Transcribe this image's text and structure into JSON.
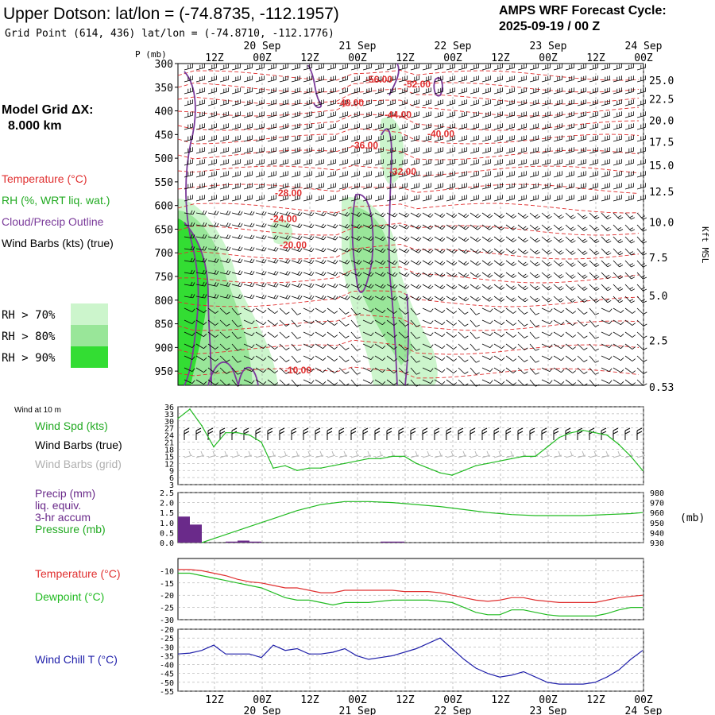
{
  "header": {
    "title": "Upper Dotson:  lat/lon = (-74.8735, -112.1957)",
    "subtitle": "Grid Point (614, 436) lat/lon = (-74.8710, -112.1776)",
    "cycle_line1": "AMPS WRF Forecast Cycle:",
    "cycle_line2": "2025-09-19 / 00  Z"
  },
  "left_panel": {
    "grid_label": "Model Grid ΔX:",
    "grid_value": "8.000 km",
    "legend": [
      {
        "text": "Temperature (°C)",
        "color": "#e03030"
      },
      {
        "text": "RH (%, WRT liq. wat.)",
        "color": "#22aa22"
      },
      {
        "text": "Cloud/Precip Outline",
        "color": "#7a3a9a"
      },
      {
        "text": "Wind Barbs (kts) (true)",
        "color": "#000000"
      }
    ],
    "rh_legend": [
      {
        "text": "RH > 70%",
        "color": "#ccf5cc"
      },
      {
        "text": "RH > 80%",
        "color": "#99e699"
      },
      {
        "text": "RH > 90%",
        "color": "#33dd33"
      }
    ]
  },
  "time_axis": {
    "top_row": [
      "12Z",
      "00Z",
      "12Z",
      "00Z",
      "12Z",
      "00Z",
      "12Z",
      "00Z",
      "12Z",
      "00Z"
    ],
    "date_labels": [
      {
        "text": "20 Sep",
        "at": 1
      },
      {
        "text": "21 Sep",
        "at": 3
      },
      {
        "text": "22 Sep",
        "at": 5
      },
      {
        "text": "23 Sep",
        "at": 7
      },
      {
        "text": "24 Sep",
        "at": 9
      }
    ]
  },
  "colors": {
    "temperature": "#e03030",
    "rh": "#22bb22",
    "cloud": "#7a3a9a",
    "wind_chill": "#2020aa",
    "precip_bar": "#6a2a8a",
    "grid": "#999999"
  },
  "chart_data": [
    {
      "type": "heatmap",
      "name": "cross_section",
      "ylabel_left": "P (mb)",
      "ylabel_right": "Kft MSL",
      "pressure_ticks": [
        300,
        350,
        400,
        450,
        500,
        550,
        600,
        650,
        700,
        750,
        800,
        850,
        900,
        950
      ],
      "height_ticks": [
        {
          "label": "25.0",
          "p": 335
        },
        {
          "label": "22.5",
          "p": 375
        },
        {
          "label": "20.0",
          "p": 420
        },
        {
          "label": "17.5",
          "p": 465
        },
        {
          "label": "15.0",
          "p": 515
        },
        {
          "label": "12.5",
          "p": 570
        },
        {
          "label": "10.0",
          "p": 635
        },
        {
          "label": "7.5",
          "p": 710
        },
        {
          "label": "5.0",
          "p": 790
        },
        {
          "label": "2.5",
          "p": 885
        },
        {
          "label": "0.53",
          "p": 985
        }
      ],
      "ylim": [
        300,
        980
      ],
      "temperature_labels": [
        {
          "text": "-56.00",
          "t": 4.2,
          "p": 340
        },
        {
          "text": "-52.00",
          "t": 5.0,
          "p": 350
        },
        {
          "text": "-48.00",
          "t": 3.6,
          "p": 390
        },
        {
          "text": "-44.00",
          "t": 4.6,
          "p": 415
        },
        {
          "text": "-40.00",
          "t": 5.5,
          "p": 455
        },
        {
          "text": "-36.00",
          "t": 3.9,
          "p": 480
        },
        {
          "text": "-32.00",
          "t": 4.7,
          "p": 535
        },
        {
          "text": "-28.00",
          "t": 2.3,
          "p": 580
        },
        {
          "text": "-24.00",
          "t": 2.2,
          "p": 635
        },
        {
          "text": "-20.00",
          "t": 2.4,
          "p": 690
        },
        {
          "text": "-10.00",
          "t": 2.5,
          "p": 955
        }
      ]
    },
    {
      "type": "line",
      "name": "wind",
      "title_label": "Wind at 10 m",
      "legend": [
        {
          "text": "Wind Spd (kts)",
          "color": "#22aa22"
        },
        {
          "text": "Wind Barbs (true)",
          "color": "#000000"
        },
        {
          "text": "Wind Barbs (grid)",
          "color": "#b0b0b0"
        }
      ],
      "yticks": [
        3,
        6,
        9,
        12,
        15,
        18,
        21,
        24,
        27,
        30,
        33,
        36
      ],
      "ylim": [
        3,
        36
      ],
      "x": [
        0,
        0.25,
        0.5,
        0.75,
        1,
        1.25,
        1.5,
        1.75,
        2,
        2.25,
        2.5,
        2.75,
        3,
        3.25,
        3.5,
        3.75,
        4,
        4.25,
        4.5,
        4.75,
        5,
        5.25,
        5.5,
        5.75,
        6,
        6.25,
        6.5,
        6.75,
        7,
        7.25,
        7.5,
        7.75,
        8,
        8.25,
        8.5,
        8.75,
        9,
        9.25,
        9.5,
        9.75
      ],
      "values": [
        31,
        35,
        28,
        19,
        25,
        25,
        24,
        21,
        10,
        11,
        9,
        10,
        10,
        11,
        12,
        13,
        14,
        14,
        15,
        15,
        12,
        10,
        8,
        7,
        9,
        11,
        12,
        13,
        14,
        15,
        15,
        19,
        23,
        25,
        26,
        25,
        24,
        20,
        15,
        9
      ]
    },
    {
      "type": "bar",
      "name": "precip_pressure",
      "legend": [
        {
          "text": "Precip (mm)",
          "color": "#6a2a8a"
        },
        {
          "text": "liq. equiv.",
          "color": "#6a2a8a"
        },
        {
          "text": "3-hr accum",
          "color": "#6a2a8a"
        },
        {
          "text": "Pressure (mb)",
          "color": "#22aa22"
        }
      ],
      "ylabel_right": "(mb)",
      "precip_yticks": [
        "0.0",
        "0.5",
        "1.0",
        "1.5",
        "2.0",
        "2.5"
      ],
      "precip_ylim": [
        0,
        2.5
      ],
      "pressure_yticks": [
        930,
        940,
        950,
        960,
        970,
        980
      ],
      "pressure_ylim": [
        930,
        980
      ],
      "precip_x": [
        0,
        0.25,
        1,
        1.25,
        1.5,
        1.75,
        2,
        2.25,
        2.5,
        2.75,
        3,
        3.25,
        3.5,
        3.75,
        4,
        4.25,
        4.5,
        4.75,
        5,
        5.25,
        5.5,
        5.75,
        6,
        6.25,
        6.5,
        6.75,
        7,
        7.25,
        7.5,
        7.75,
        8,
        8.25,
        8.5,
        8.75,
        9,
        9.25,
        9.5,
        9.75
      ],
      "precip_values": [
        1.3,
        0.9,
        0.05,
        0.1,
        0.05,
        0,
        0,
        0,
        0,
        0,
        0,
        0,
        0,
        0,
        0,
        0.05,
        0.05,
        0,
        0,
        0,
        0,
        0,
        0,
        0,
        0,
        0,
        0,
        0,
        0,
        0,
        0,
        0,
        0,
        0,
        0,
        0,
        0,
        0
      ],
      "pressure_x": [
        0.5,
        1,
        1.5,
        2,
        2.5,
        3,
        3.5,
        4,
        4.5,
        5,
        5.5,
        6,
        6.5,
        7,
        7.5,
        8,
        8.5,
        9,
        9.5,
        9.75
      ],
      "pressure_values": [
        930,
        938,
        946,
        954,
        962,
        968,
        971,
        971,
        970,
        968,
        966,
        963,
        960,
        958,
        957,
        957,
        957,
        958,
        959,
        960
      ]
    },
    {
      "type": "line",
      "name": "temp_dewpoint",
      "legend": [
        {
          "text": "Temperature (°C)",
          "color": "#e03030"
        },
        {
          "text": "Dewpoint (°C)",
          "color": "#22bb22"
        }
      ],
      "yticks": [
        -10,
        -15,
        -20,
        -25,
        -30
      ],
      "ylim": [
        -30,
        -5
      ],
      "x": [
        0,
        0.25,
        0.5,
        0.75,
        1,
        1.25,
        1.5,
        1.75,
        2,
        2.25,
        2.5,
        2.75,
        3,
        3.25,
        3.5,
        3.75,
        4,
        4.25,
        4.5,
        4.75,
        5,
        5.25,
        5.5,
        5.75,
        6,
        6.25,
        6.5,
        6.75,
        7,
        7.25,
        7.5,
        7.75,
        8,
        8.25,
        8.5,
        8.75,
        9,
        9.25,
        9.5,
        9.75
      ],
      "series": [
        {
          "name": "Temperature (°C)",
          "values": [
            -9.5,
            -9.5,
            -10,
            -11,
            -12,
            -13.5,
            -14.5,
            -15,
            -16,
            -17,
            -17,
            -18,
            -19,
            -19,
            -18,
            -18,
            -18,
            -18,
            -18,
            -18.5,
            -18.5,
            -18.5,
            -19,
            -20,
            -21,
            -22,
            -22.5,
            -22,
            -21,
            -21,
            -22,
            -22.5,
            -23,
            -23,
            -23,
            -23,
            -22,
            -21,
            -20.5,
            -20
          ]
        },
        {
          "name": "Dewpoint (°C)",
          "values": [
            -11,
            -11,
            -12,
            -13,
            -14,
            -15,
            -16,
            -17,
            -19,
            -21,
            -22,
            -22,
            -23,
            -24,
            -23,
            -23,
            -23,
            -22.5,
            -22,
            -22,
            -22,
            -22,
            -22.5,
            -23,
            -25,
            -27,
            -28,
            -28,
            -26,
            -26,
            -27,
            -28,
            -28.5,
            -28.5,
            -28.5,
            -28.5,
            -27.5,
            -26,
            -25,
            -25
          ]
        }
      ]
    },
    {
      "type": "line",
      "name": "wind_chill",
      "legend": [
        {
          "text": "Wind Chill T (°C)",
          "color": "#2020aa"
        }
      ],
      "yticks": [
        -20,
        -25,
        -30,
        -35,
        -40,
        -45,
        -50,
        -55
      ],
      "ylim": [
        -55,
        -20
      ],
      "x": [
        0,
        0.25,
        0.5,
        0.75,
        1,
        1.25,
        1.5,
        1.75,
        2,
        2.25,
        2.5,
        2.75,
        3,
        3.25,
        3.5,
        3.75,
        4,
        4.25,
        4.5,
        4.75,
        5,
        5.25,
        5.5,
        5.75,
        6,
        6.25,
        6.5,
        6.75,
        7,
        7.25,
        7.5,
        7.75,
        8,
        8.25,
        8.5,
        8.75,
        9,
        9.25,
        9.5,
        9.75
      ],
      "values": [
        -34,
        -33.5,
        -32,
        -29,
        -34,
        -34,
        -34,
        -36,
        -29,
        -32,
        -31,
        -34,
        -34,
        -33,
        -31,
        -35,
        -37,
        -36,
        -35,
        -33,
        -31,
        -28,
        -25,
        -31,
        -37,
        -42,
        -45,
        -47,
        -46,
        -44,
        -47,
        -50,
        -51,
        -51,
        -51,
        -50,
        -47,
        -43,
        -37,
        -32
      ]
    }
  ]
}
